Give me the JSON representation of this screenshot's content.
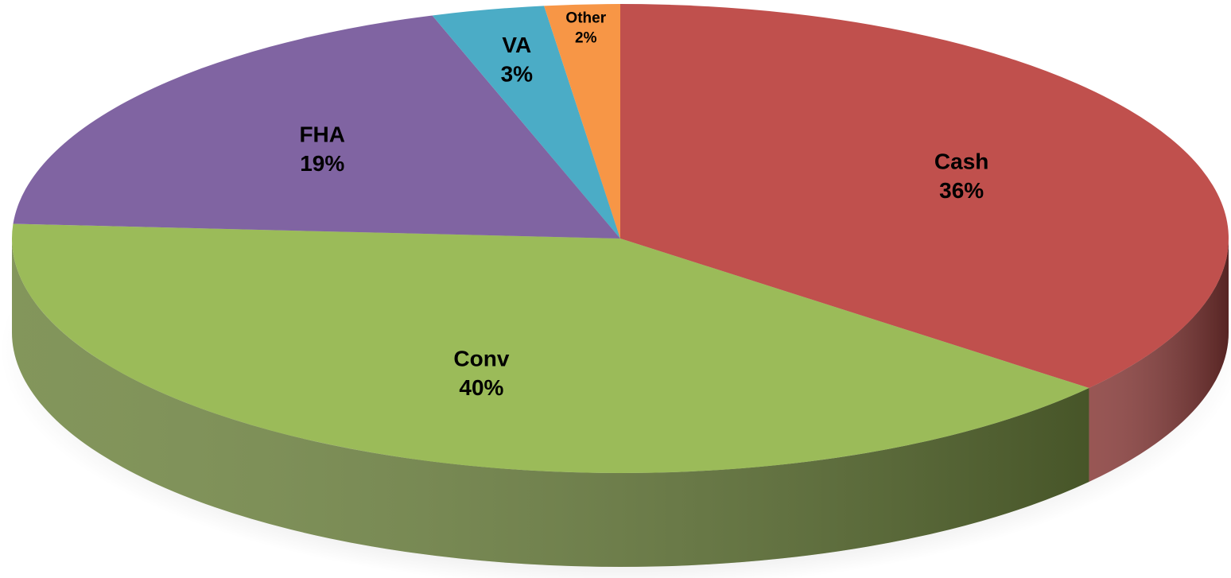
{
  "chart_data": {
    "type": "pie",
    "categories": [
      "Cash",
      "Conv",
      "FHA",
      "VA",
      "Other"
    ],
    "values": [
      36,
      40,
      19,
      3,
      2
    ],
    "value_labels": [
      "36%",
      "40%",
      "19%",
      "3%",
      "2%"
    ],
    "colors": [
      "#c0504d",
      "#9bbb59",
      "#8064a2",
      "#4bacc6",
      "#f79646"
    ]
  }
}
